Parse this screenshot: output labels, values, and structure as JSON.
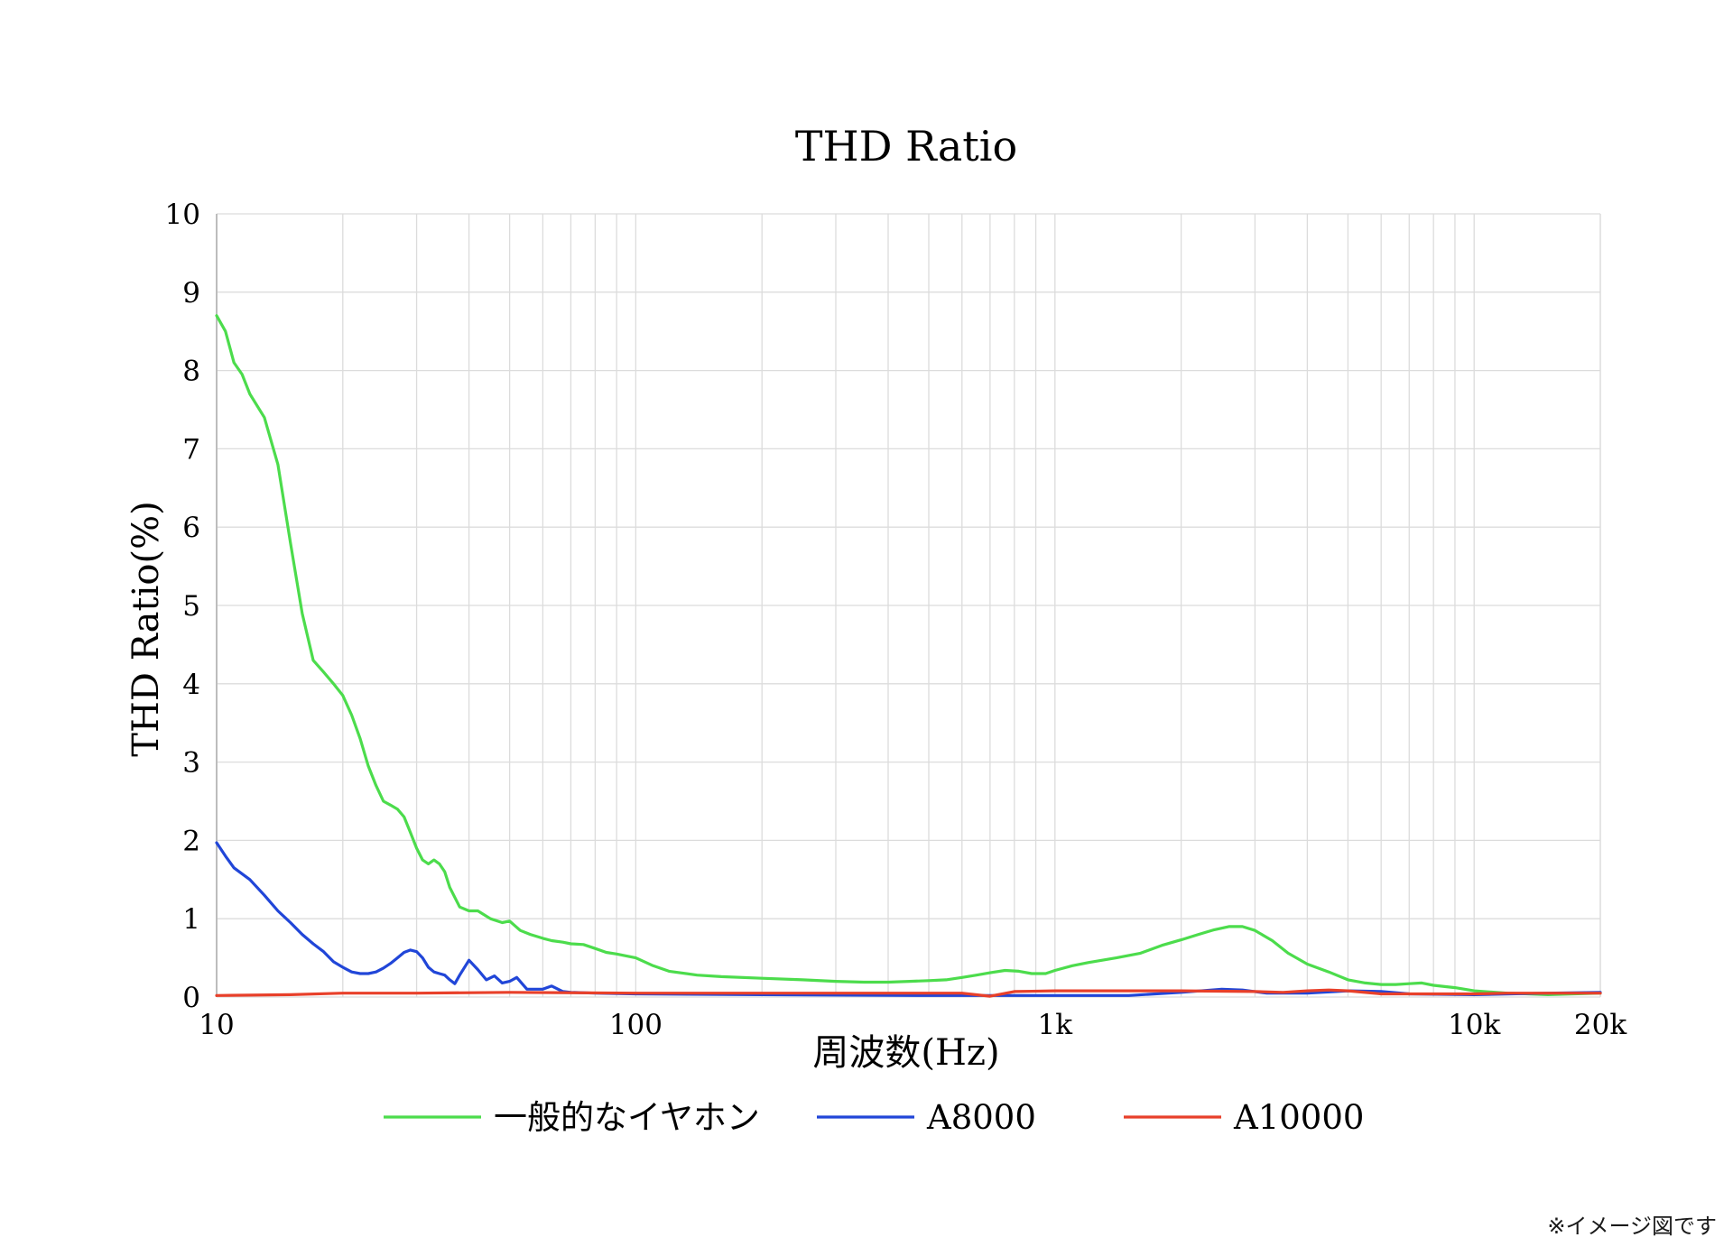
{
  "footnote": "※イメージ図です",
  "chart_data": {
    "type": "line",
    "title": "THD Ratio",
    "xlabel": "周波数(Hz)",
    "ylabel": "THD Ratio(%)",
    "x_scale": "log",
    "xlim": [
      10,
      20000
    ],
    "ylim": [
      0,
      10
    ],
    "grid": true,
    "legend_position": "bottom",
    "x_ticks": [
      {
        "value": 10,
        "label": "10"
      },
      {
        "value": 100,
        "label": "100"
      },
      {
        "value": 1000,
        "label": "1k"
      },
      {
        "value": 10000,
        "label": "10k"
      },
      {
        "value": 20000,
        "label": "20k"
      }
    ],
    "y_ticks": [
      0,
      1,
      2,
      3,
      4,
      5,
      6,
      7,
      8,
      9,
      10
    ],
    "series": [
      {
        "name": "一般的なイヤホン",
        "color": "#4cdc4c",
        "points": [
          [
            10,
            8.7
          ],
          [
            10.5,
            8.5
          ],
          [
            11,
            8.1
          ],
          [
            11.5,
            7.95
          ],
          [
            12,
            7.7
          ],
          [
            13,
            7.4
          ],
          [
            14,
            6.8
          ],
          [
            15,
            5.8
          ],
          [
            16,
            4.9
          ],
          [
            17,
            4.3
          ],
          [
            18,
            4.15
          ],
          [
            19,
            4.0
          ],
          [
            20,
            3.85
          ],
          [
            21,
            3.6
          ],
          [
            22,
            3.3
          ],
          [
            23,
            2.95
          ],
          [
            24,
            2.7
          ],
          [
            25,
            2.5
          ],
          [
            26,
            2.45
          ],
          [
            27,
            2.4
          ],
          [
            28,
            2.3
          ],
          [
            29,
            2.1
          ],
          [
            30,
            1.9
          ],
          [
            31,
            1.75
          ],
          [
            32,
            1.7
          ],
          [
            33,
            1.75
          ],
          [
            34,
            1.7
          ],
          [
            35,
            1.6
          ],
          [
            36,
            1.4
          ],
          [
            38,
            1.15
          ],
          [
            40,
            1.1
          ],
          [
            42,
            1.1
          ],
          [
            45,
            1.0
          ],
          [
            48,
            0.95
          ],
          [
            50,
            0.97
          ],
          [
            53,
            0.85
          ],
          [
            56,
            0.8
          ],
          [
            60,
            0.75
          ],
          [
            63,
            0.72
          ],
          [
            67,
            0.7
          ],
          [
            70,
            0.68
          ],
          [
            75,
            0.67
          ],
          [
            80,
            0.62
          ],
          [
            85,
            0.57
          ],
          [
            90,
            0.55
          ],
          [
            100,
            0.5
          ],
          [
            110,
            0.4
          ],
          [
            120,
            0.33
          ],
          [
            140,
            0.28
          ],
          [
            160,
            0.26
          ],
          [
            200,
            0.24
          ],
          [
            250,
            0.22
          ],
          [
            300,
            0.2
          ],
          [
            350,
            0.19
          ],
          [
            400,
            0.19
          ],
          [
            450,
            0.2
          ],
          [
            500,
            0.21
          ],
          [
            550,
            0.22
          ],
          [
            600,
            0.25
          ],
          [
            650,
            0.28
          ],
          [
            700,
            0.31
          ],
          [
            760,
            0.34
          ],
          [
            820,
            0.33
          ],
          [
            880,
            0.3
          ],
          [
            950,
            0.3
          ],
          [
            1000,
            0.34
          ],
          [
            1100,
            0.4
          ],
          [
            1200,
            0.44
          ],
          [
            1400,
            0.5
          ],
          [
            1600,
            0.56
          ],
          [
            1800,
            0.66
          ],
          [
            2000,
            0.73
          ],
          [
            2200,
            0.8
          ],
          [
            2400,
            0.86
          ],
          [
            2600,
            0.9
          ],
          [
            2800,
            0.9
          ],
          [
            3000,
            0.85
          ],
          [
            3300,
            0.72
          ],
          [
            3600,
            0.56
          ],
          [
            4000,
            0.42
          ],
          [
            4500,
            0.32
          ],
          [
            5000,
            0.22
          ],
          [
            5500,
            0.18
          ],
          [
            6000,
            0.16
          ],
          [
            6500,
            0.16
          ],
          [
            7000,
            0.17
          ],
          [
            7500,
            0.18
          ],
          [
            8000,
            0.15
          ],
          [
            9000,
            0.12
          ],
          [
            10000,
            0.08
          ],
          [
            12000,
            0.05
          ],
          [
            15000,
            0.03
          ],
          [
            20000,
            0.05
          ]
        ]
      },
      {
        "name": "A8000",
        "color": "#2146d8",
        "points": [
          [
            10,
            1.97
          ],
          [
            10.5,
            1.8
          ],
          [
            11,
            1.65
          ],
          [
            12,
            1.5
          ],
          [
            13,
            1.3
          ],
          [
            14,
            1.1
          ],
          [
            15,
            0.95
          ],
          [
            16,
            0.8
          ],
          [
            17,
            0.68
          ],
          [
            18,
            0.58
          ],
          [
            19,
            0.45
          ],
          [
            20,
            0.38
          ],
          [
            21,
            0.32
          ],
          [
            22,
            0.3
          ],
          [
            23,
            0.3
          ],
          [
            24,
            0.32
          ],
          [
            25,
            0.37
          ],
          [
            26,
            0.43
          ],
          [
            27,
            0.5
          ],
          [
            28,
            0.57
          ],
          [
            29,
            0.6
          ],
          [
            30,
            0.58
          ],
          [
            31,
            0.5
          ],
          [
            32,
            0.38
          ],
          [
            33,
            0.32
          ],
          [
            34,
            0.3
          ],
          [
            35,
            0.28
          ],
          [
            36,
            0.22
          ],
          [
            37,
            0.17
          ],
          [
            38,
            0.28
          ],
          [
            40,
            0.47
          ],
          [
            42,
            0.35
          ],
          [
            44,
            0.22
          ],
          [
            46,
            0.27
          ],
          [
            48,
            0.18
          ],
          [
            50,
            0.2
          ],
          [
            52,
            0.25
          ],
          [
            55,
            0.1
          ],
          [
            60,
            0.1
          ],
          [
            63,
            0.14
          ],
          [
            67,
            0.07
          ],
          [
            70,
            0.06
          ],
          [
            80,
            0.05
          ],
          [
            100,
            0.04
          ],
          [
            200,
            0.03
          ],
          [
            500,
            0.02
          ],
          [
            1000,
            0.02
          ],
          [
            1500,
            0.02
          ],
          [
            2000,
            0.06
          ],
          [
            2500,
            0.1
          ],
          [
            2800,
            0.09
          ],
          [
            3200,
            0.05
          ],
          [
            4000,
            0.05
          ],
          [
            5000,
            0.08
          ],
          [
            6000,
            0.07
          ],
          [
            7000,
            0.04
          ],
          [
            10000,
            0.03
          ],
          [
            15000,
            0.05
          ],
          [
            20000,
            0.06
          ]
        ]
      },
      {
        "name": "A10000",
        "color": "#e8402a",
        "points": [
          [
            10,
            0.02
          ],
          [
            15,
            0.03
          ],
          [
            20,
            0.05
          ],
          [
            30,
            0.05
          ],
          [
            50,
            0.06
          ],
          [
            100,
            0.05
          ],
          [
            200,
            0.05
          ],
          [
            400,
            0.05
          ],
          [
            600,
            0.05
          ],
          [
            700,
            0.01
          ],
          [
            800,
            0.07
          ],
          [
            1000,
            0.08
          ],
          [
            1500,
            0.08
          ],
          [
            2000,
            0.08
          ],
          [
            3000,
            0.07
          ],
          [
            3500,
            0.06
          ],
          [
            4000,
            0.08
          ],
          [
            4500,
            0.09
          ],
          [
            5000,
            0.08
          ],
          [
            6000,
            0.04
          ],
          [
            8000,
            0.04
          ],
          [
            10000,
            0.04
          ],
          [
            12000,
            0.05
          ],
          [
            15000,
            0.05
          ],
          [
            20000,
            0.05
          ]
        ]
      }
    ]
  }
}
